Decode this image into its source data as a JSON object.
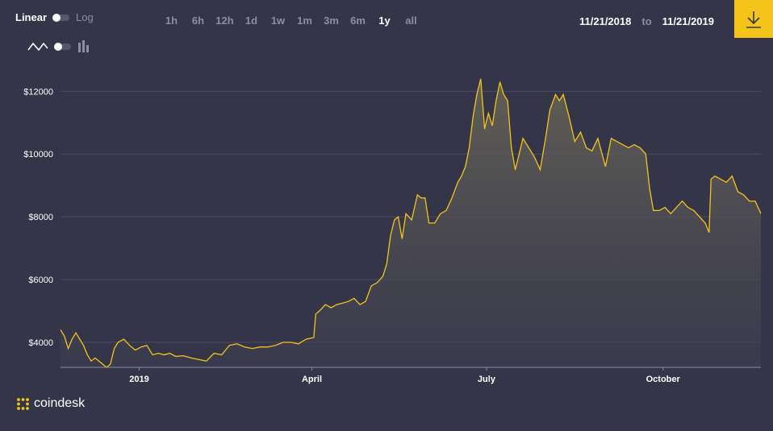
{
  "scale": {
    "linear_label": "Linear",
    "log_label": "Log",
    "selected": "Linear"
  },
  "chart_type": {
    "line_icon": "line-chart-icon",
    "bar_icon": "bar-chart-icon",
    "selected": "line"
  },
  "ranges": {
    "items": [
      "1h",
      "6h",
      "12h",
      "1d",
      "1w",
      "1m",
      "3m",
      "6m",
      "1y",
      "all"
    ],
    "active": "1y"
  },
  "date_range": {
    "from": "11/21/2018",
    "separator": "to",
    "to": "11/21/2019"
  },
  "download": {
    "icon": "download-icon"
  },
  "brand": {
    "name": "coindesk",
    "icon": "coindesk-logo-icon"
  },
  "colors": {
    "background": "#343549",
    "line": "#f4c41a",
    "accent": "#f4c41a"
  },
  "chart_data": {
    "type": "area",
    "x_unit": "date",
    "y_unit": "USD",
    "xlabel": "",
    "ylabel": "",
    "xlim": [
      "2018-11-21",
      "2019-11-21"
    ],
    "ylim": [
      3200,
      12600
    ],
    "yticks": [
      4000,
      6000,
      8000,
      10000,
      12000
    ],
    "ytick_labels": [
      "$4000",
      "$6000",
      "$8000",
      "$10000",
      "$12000"
    ],
    "xticks": [
      "2019-01-01",
      "2019-04-01",
      "2019-07-01",
      "2019-10-01"
    ],
    "xtick_labels": [
      "2019",
      "April",
      "July",
      "October"
    ],
    "grid": "horizontal",
    "series": [
      {
        "x": [
          "2018-11-21",
          "2018-11-23",
          "2018-11-25",
          "2018-11-27",
          "2018-11-29",
          "2018-12-01",
          "2018-12-03",
          "2018-12-05",
          "2018-12-07",
          "2018-12-09",
          "2018-12-11",
          "2018-12-13",
          "2018-12-15",
          "2018-12-17",
          "2018-12-19",
          "2018-12-21",
          "2018-12-24",
          "2018-12-27",
          "2018-12-30",
          "2019-01-02",
          "2019-01-05",
          "2019-01-08",
          "2019-01-11",
          "2019-01-14",
          "2019-01-17",
          "2019-01-20",
          "2019-01-24",
          "2019-01-28",
          "2019-02-01",
          "2019-02-05",
          "2019-02-09",
          "2019-02-13",
          "2019-02-17",
          "2019-02-21",
          "2019-02-25",
          "2019-03-01",
          "2019-03-05",
          "2019-03-09",
          "2019-03-13",
          "2019-03-17",
          "2019-03-21",
          "2019-03-25",
          "2019-03-29",
          "2019-04-02",
          "2019-04-03",
          "2019-04-05",
          "2019-04-08",
          "2019-04-11",
          "2019-04-14",
          "2019-04-17",
          "2019-04-20",
          "2019-04-23",
          "2019-04-26",
          "2019-04-29",
          "2019-05-02",
          "2019-05-05",
          "2019-05-08",
          "2019-05-10",
          "2019-05-12",
          "2019-05-14",
          "2019-05-16",
          "2019-05-18",
          "2019-05-20",
          "2019-05-23",
          "2019-05-26",
          "2019-05-28",
          "2019-05-30",
          "2019-06-01",
          "2019-06-04",
          "2019-06-07",
          "2019-06-10",
          "2019-06-13",
          "2019-06-16",
          "2019-06-18",
          "2019-06-20",
          "2019-06-22",
          "2019-06-24",
          "2019-06-26",
          "2019-06-28",
          "2019-06-30",
          "2019-07-02",
          "2019-07-04",
          "2019-07-06",
          "2019-07-08",
          "2019-07-10",
          "2019-07-12",
          "2019-07-14",
          "2019-07-16",
          "2019-07-18",
          "2019-07-20",
          "2019-07-23",
          "2019-07-26",
          "2019-07-29",
          "2019-08-01",
          "2019-08-03",
          "2019-08-06",
          "2019-08-08",
          "2019-08-10",
          "2019-08-13",
          "2019-08-16",
          "2019-08-19",
          "2019-08-22",
          "2019-08-25",
          "2019-08-28",
          "2019-09-01",
          "2019-09-04",
          "2019-09-07",
          "2019-09-10",
          "2019-09-13",
          "2019-09-16",
          "2019-09-19",
          "2019-09-22",
          "2019-09-24",
          "2019-09-26",
          "2019-09-29",
          "2019-10-02",
          "2019-10-05",
          "2019-10-08",
          "2019-10-11",
          "2019-10-14",
          "2019-10-17",
          "2019-10-20",
          "2019-10-23",
          "2019-10-25",
          "2019-10-26",
          "2019-10-28",
          "2019-10-31",
          "2019-11-03",
          "2019-11-06",
          "2019-11-09",
          "2019-11-12",
          "2019-11-15",
          "2019-11-18",
          "2019-11-21"
        ],
        "y": [
          4400,
          4200,
          3800,
          4100,
          4300,
          4100,
          3900,
          3600,
          3400,
          3500,
          3400,
          3300,
          3200,
          3300,
          3800,
          4000,
          4100,
          3900,
          3750,
          3850,
          3900,
          3600,
          3650,
          3600,
          3650,
          3550,
          3570,
          3500,
          3450,
          3400,
          3650,
          3600,
          3900,
          3950,
          3850,
          3800,
          3850,
          3850,
          3900,
          4000,
          4000,
          3950,
          4100,
          4150,
          4900,
          5000,
          5200,
          5100,
          5200,
          5250,
          5300,
          5400,
          5200,
          5300,
          5800,
          5900,
          6100,
          6500,
          7400,
          7900,
          8000,
          7300,
          8100,
          7900,
          8700,
          8600,
          8600,
          7800,
          7800,
          8100,
          8200,
          8600,
          9100,
          9300,
          9600,
          10200,
          11200,
          11900,
          12400,
          10800,
          11300,
          10900,
          11700,
          12300,
          11900,
          11700,
          10200,
          9500,
          10000,
          10500,
          10200,
          9900,
          9500,
          10600,
          11400,
          11900,
          11700,
          11900,
          11200,
          10400,
          10700,
          10200,
          10100,
          10500,
          9600,
          10500,
          10400,
          10300,
          10200,
          10300,
          10200,
          10000,
          8900,
          8200,
          8200,
          8300,
          8100,
          8300,
          8500,
          8300,
          8200,
          8000,
          7800,
          7500,
          9200,
          9300,
          9200,
          9100,
          9300,
          8800,
          8700,
          8500,
          8500,
          8100
        ]
      }
    ]
  }
}
